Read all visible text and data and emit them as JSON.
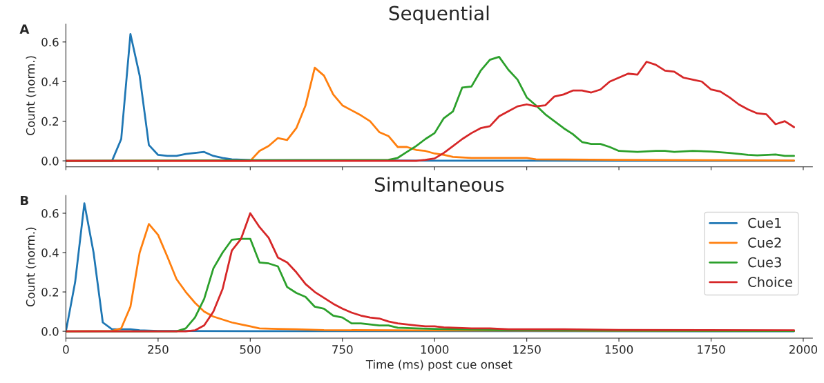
{
  "chart_data": [
    {
      "type": "line",
      "title": "Sequential",
      "ylabel": "Count (norm.)",
      "annotations": [
        "A"
      ],
      "xlim": [
        0,
        2025
      ],
      "xticks": [
        0,
        250,
        500,
        750,
        1000,
        1250,
        1500,
        1750,
        2000
      ],
      "ylim": [
        -0.03,
        0.69
      ],
      "yticks": [
        {
          "value": 0,
          "label": "0.0"
        },
        {
          "value": 0.2,
          "label": "0.2"
        },
        {
          "value": 0.4,
          "label": "0.4"
        },
        {
          "value": 0.6,
          "label": "0.6"
        }
      ],
      "tick_labels": "y",
      "grid": false,
      "legend": false,
      "series": [
        {
          "color": "#1f77b4",
          "x": [
            0,
            125,
            150,
            175,
            200,
            225,
            250,
            275,
            300,
            325,
            350,
            375,
            400,
            425,
            450,
            500,
            1000,
            1975
          ],
          "values": [
            0,
            0,
            0.11,
            0.64,
            0.43,
            0.08,
            0.03,
            0.025,
            0.025,
            0.035,
            0.04,
            0.045,
            0.025,
            0.015,
            0.008,
            0.004,
            0.001,
            0
          ]
        },
        {
          "color": "#ff7f0e",
          "x": [
            0,
            500,
            525,
            550,
            575,
            600,
            625,
            650,
            675,
            700,
            725,
            750,
            775,
            800,
            825,
            850,
            875,
            900,
            925,
            950,
            975,
            1000,
            1025,
            1050,
            1100,
            1250,
            1275,
            1500,
            1975
          ],
          "values": [
            0,
            0,
            0.05,
            0.075,
            0.115,
            0.105,
            0.165,
            0.28,
            0.47,
            0.43,
            0.335,
            0.28,
            0.255,
            0.23,
            0.2,
            0.145,
            0.125,
            0.07,
            0.07,
            0.055,
            0.05,
            0.037,
            0.03,
            0.02,
            0.015,
            0.015,
            0.008,
            0.005,
            0.002
          ]
        },
        {
          "color": "#2ca02c",
          "x": [
            0,
            875,
            900,
            925,
            950,
            975,
            1000,
            1025,
            1050,
            1075,
            1100,
            1125,
            1150,
            1175,
            1200,
            1225,
            1250,
            1275,
            1300,
            1325,
            1350,
            1375,
            1400,
            1425,
            1450,
            1475,
            1500,
            1550,
            1600,
            1625,
            1650,
            1700,
            1750,
            1800,
            1850,
            1875,
            1925,
            1950,
            1975
          ],
          "values": [
            0,
            0.005,
            0.015,
            0.045,
            0.075,
            0.11,
            0.14,
            0.215,
            0.25,
            0.37,
            0.375,
            0.455,
            0.51,
            0.525,
            0.46,
            0.41,
            0.32,
            0.28,
            0.235,
            0.2,
            0.165,
            0.135,
            0.095,
            0.085,
            0.085,
            0.07,
            0.05,
            0.045,
            0.05,
            0.05,
            0.045,
            0.05,
            0.047,
            0.04,
            0.03,
            0.028,
            0.032,
            0.025,
            0.025
          ]
        },
        {
          "color": "#d62728",
          "x": [
            0,
            950,
            975,
            1000,
            1025,
            1050,
            1075,
            1100,
            1125,
            1150,
            1175,
            1200,
            1225,
            1250,
            1275,
            1300,
            1325,
            1350,
            1375,
            1400,
            1425,
            1450,
            1475,
            1500,
            1525,
            1550,
            1575,
            1600,
            1625,
            1650,
            1675,
            1700,
            1725,
            1750,
            1775,
            1800,
            1825,
            1850,
            1875,
            1900,
            1925,
            1950,
            1975
          ],
          "values": [
            0,
            0,
            0.005,
            0.012,
            0.04,
            0.075,
            0.11,
            0.14,
            0.165,
            0.175,
            0.225,
            0.25,
            0.275,
            0.285,
            0.275,
            0.28,
            0.325,
            0.335,
            0.355,
            0.355,
            0.345,
            0.36,
            0.4,
            0.42,
            0.44,
            0.435,
            0.5,
            0.485,
            0.455,
            0.45,
            0.42,
            0.41,
            0.4,
            0.36,
            0.35,
            0.32,
            0.285,
            0.26,
            0.24,
            0.235,
            0.185,
            0.2,
            0.17
          ]
        }
      ]
    },
    {
      "type": "line",
      "title": "Simultaneous",
      "xlabel": "Time (ms) post cue onset",
      "ylabel": "Count (norm.)",
      "annotations": [
        "B"
      ],
      "xlim": [
        0,
        2025
      ],
      "xticks": [
        0,
        250,
        500,
        750,
        1000,
        1250,
        1500,
        1750,
        2000
      ],
      "ylim": [
        -0.035,
        0.69
      ],
      "yticks": [
        {
          "value": 0,
          "label": "0.0"
        },
        {
          "value": 0.2,
          "label": "0.2"
        },
        {
          "value": 0.4,
          "label": "0.4"
        },
        {
          "value": 0.6,
          "label": "0.6"
        }
      ],
      "grid": false,
      "legend": "top right",
      "series": [
        {
          "name": "Cue1",
          "color": "#1f77b4",
          "x": [
            0,
            25,
            50,
            75,
            100,
            125,
            150,
            175,
            200,
            250,
            500,
            1975
          ],
          "values": [
            0,
            0.25,
            0.65,
            0.4,
            0.045,
            0.01,
            0.01,
            0.01,
            0.005,
            0.002,
            0.001,
            0
          ]
        },
        {
          "name": "Cue2",
          "color": "#ff7f0e",
          "x": [
            0,
            125,
            150,
            175,
            200,
            225,
            250,
            275,
            300,
            325,
            350,
            375,
            400,
            425,
            450,
            475,
            500,
            525,
            575,
            625,
            700,
            1000,
            1975
          ],
          "values": [
            0,
            0.002,
            0.015,
            0.125,
            0.4,
            0.545,
            0.49,
            0.38,
            0.265,
            0.2,
            0.145,
            0.1,
            0.075,
            0.06,
            0.045,
            0.035,
            0.025,
            0.015,
            0.012,
            0.01,
            0.006,
            0.004,
            0.002
          ]
        },
        {
          "name": "Cue3",
          "color": "#2ca02c",
          "x": [
            0,
            300,
            325,
            350,
            375,
            400,
            425,
            450,
            475,
            500,
            525,
            550,
            575,
            600,
            625,
            650,
            675,
            700,
            725,
            750,
            775,
            800,
            850,
            875,
            900,
            950,
            1000,
            1050,
            1200,
            1975
          ],
          "values": [
            0,
            0,
            0.015,
            0.07,
            0.165,
            0.32,
            0.4,
            0.465,
            0.47,
            0.47,
            0.35,
            0.345,
            0.33,
            0.225,
            0.195,
            0.175,
            0.125,
            0.115,
            0.08,
            0.07,
            0.04,
            0.04,
            0.03,
            0.03,
            0.018,
            0.015,
            0.012,
            0.01,
            0.005,
            0.002
          ]
        },
        {
          "name": "Choice",
          "color": "#d62728",
          "x": [
            0,
            325,
            350,
            375,
            400,
            425,
            450,
            475,
            500,
            525,
            550,
            575,
            600,
            625,
            650,
            675,
            700,
            725,
            750,
            775,
            800,
            825,
            850,
            875,
            900,
            925,
            950,
            975,
            1000,
            1025,
            1100,
            1150,
            1200,
            1300,
            1350,
            1500,
            1975
          ],
          "values": [
            0,
            0,
            0.005,
            0.03,
            0.1,
            0.215,
            0.41,
            0.47,
            0.6,
            0.53,
            0.475,
            0.375,
            0.35,
            0.3,
            0.24,
            0.2,
            0.17,
            0.14,
            0.115,
            0.095,
            0.08,
            0.07,
            0.065,
            0.05,
            0.04,
            0.035,
            0.03,
            0.025,
            0.025,
            0.02,
            0.015,
            0.015,
            0.01,
            0.01,
            0.01,
            0.007,
            0.005
          ]
        }
      ]
    }
  ]
}
